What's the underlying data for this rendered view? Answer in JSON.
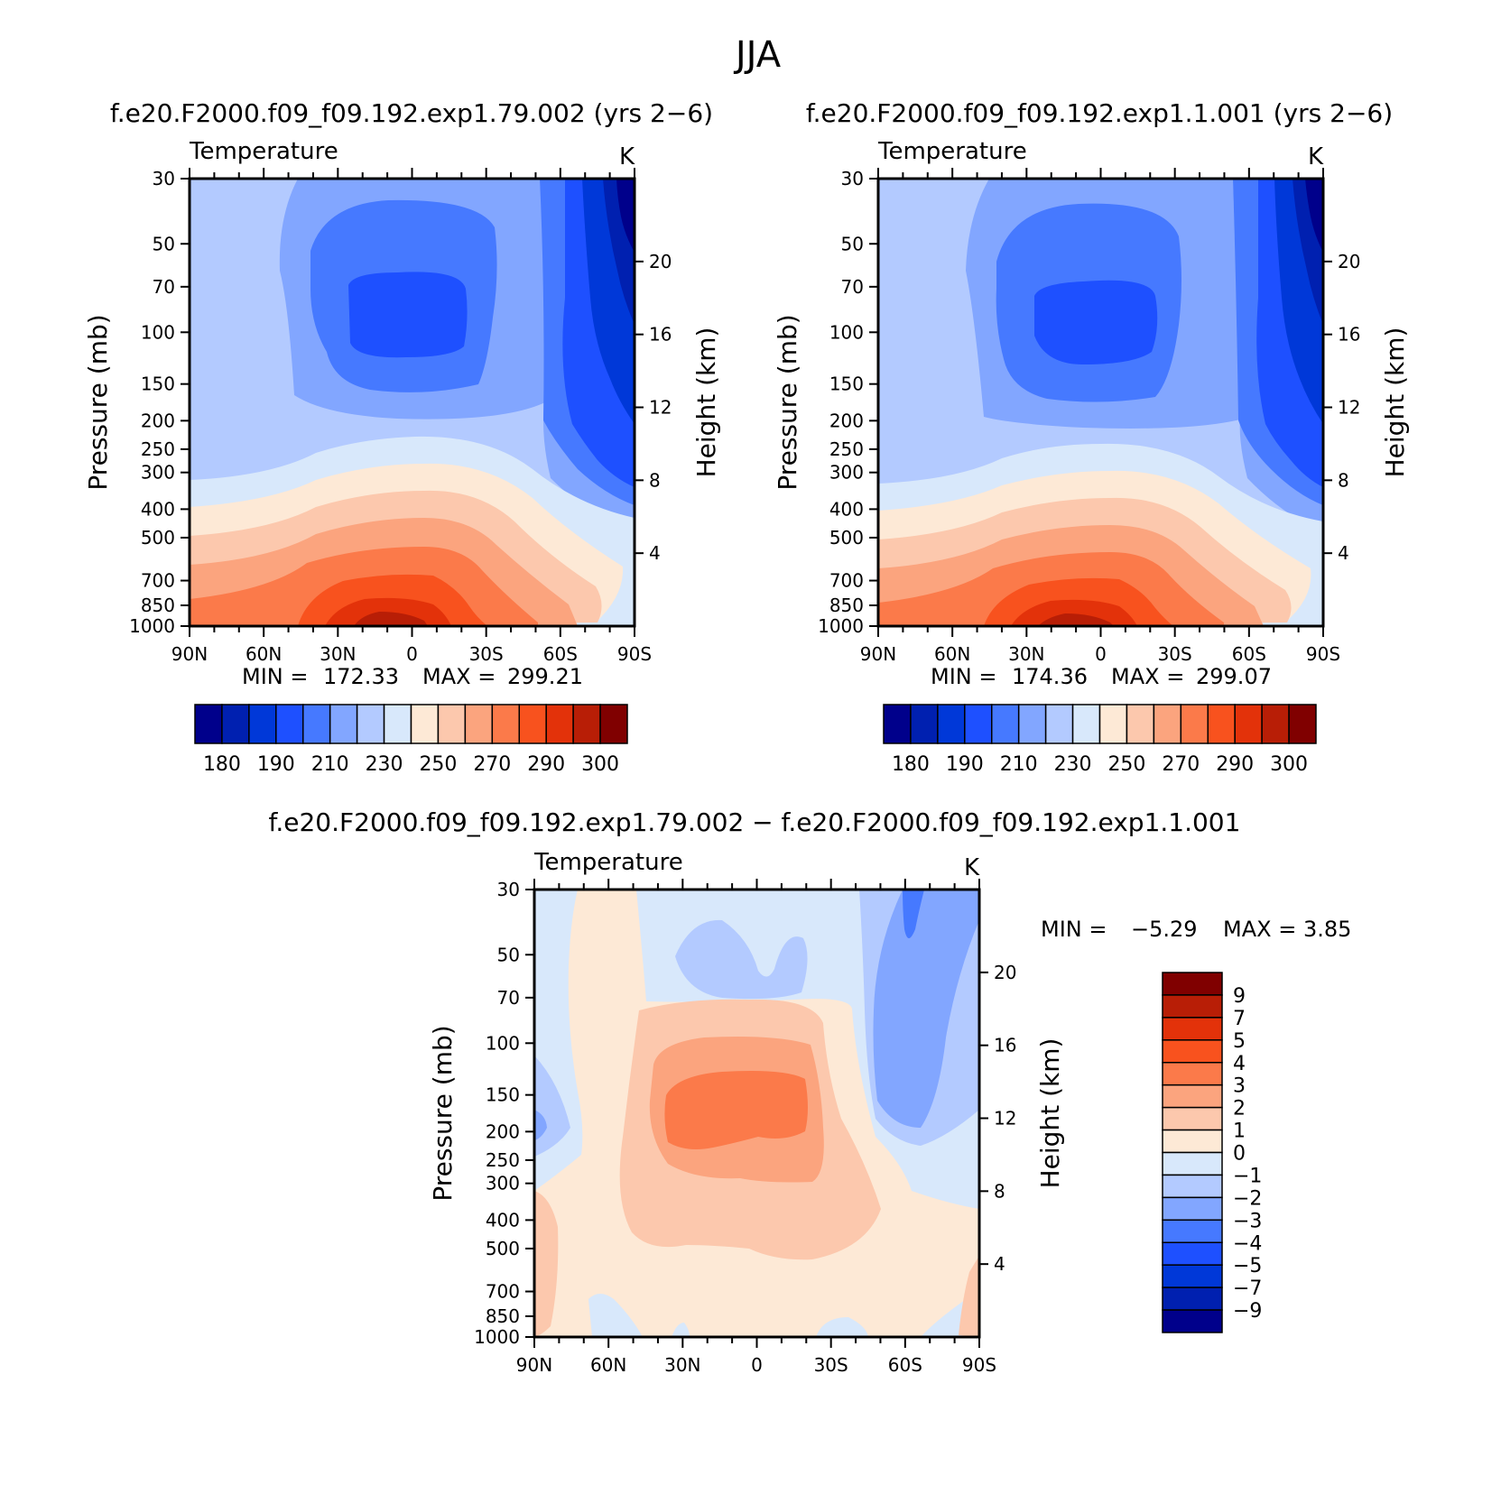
{
  "season_title": "JJA",
  "colors": {
    "abs_fill": [
      "#00008b",
      "#0020b0",
      "#0038d8",
      "#1e50ff",
      "#4679ff",
      "#82a6ff",
      "#b3caff",
      "#d8e8fb",
      "#fde9d6",
      "#fcc8ad",
      "#fba47e",
      "#fb7a4a",
      "#f8521e",
      "#e3320a",
      "#b81e06",
      "#800000"
    ],
    "diff_fill": [
      "#00008b",
      "#0020b0",
      "#0038d8",
      "#1e50ff",
      "#4679ff",
      "#82a6ff",
      "#b3caff",
      "#d8e8fb",
      "#fde9d6",
      "#fcc8ad",
      "#fba47e",
      "#fb7a4a",
      "#f8521e",
      "#e3320a",
      "#b81e06",
      "#800000"
    ]
  },
  "panels": {
    "p1": {
      "case_title": "f.e20.F2000.f09_f09.192.exp1.79.002 (yrs 2−6)",
      "variable": "Temperature",
      "units": "K",
      "y_left_label": "Pressure (mb)",
      "y_right_label": "Height (km)",
      "min_label": "MIN =",
      "min_value": "172.33",
      "max_label": "MAX =",
      "max_value": "299.21"
    },
    "p2": {
      "case_title": "f.e20.F2000.f09_f09.192.exp1.1.001 (yrs 2−6)",
      "variable": "Temperature",
      "units": "K",
      "y_left_label": "Pressure (mb)",
      "y_right_label": "Height (km)",
      "min_label": "MIN =",
      "min_value": "174.36",
      "max_label": "MAX =",
      "max_value": "299.07"
    },
    "p3": {
      "case_title": "f.e20.F2000.f09_f09.192.exp1.79.002 − f.e20.F2000.f09_f09.192.exp1.1.001",
      "variable": "Temperature",
      "units": "K",
      "y_left_label": "Pressure (mb)",
      "y_right_label": "Height (km)",
      "min_label": "MIN =",
      "min_value": "−5.29",
      "max_label": "MAX =",
      "max_value": "3.85"
    }
  },
  "chart_data": [
    {
      "type": "heatmap",
      "subtype": "filled-contour zonal-mean cross-section",
      "title": "f.e20.F2000.f09_f09.192.exp1.79.002 (yrs 2−6)",
      "variable": "Temperature",
      "units": "K",
      "xlabel": "",
      "ylabel": "Pressure (mb)",
      "y2label": "Height (km)",
      "x_ticks": [
        "90N",
        "60N",
        "30N",
        "0",
        "30S",
        "60S",
        "90S"
      ],
      "pressure_ticks": [
        30,
        50,
        70,
        100,
        150,
        200,
        250,
        300,
        400,
        500,
        700,
        850,
        1000
      ],
      "height_ticks": [
        4,
        8,
        12,
        16,
        20
      ],
      "ylim": [
        1000,
        30
      ],
      "y_scale": "log",
      "colorbar_labels": [
        "180",
        "190",
        "210",
        "230",
        "250",
        "270",
        "290",
        "300"
      ],
      "colorbar_n_colors": 16,
      "min": 172.33,
      "max": 299.21
    },
    {
      "type": "heatmap",
      "subtype": "filled-contour zonal-mean cross-section",
      "title": "f.e20.F2000.f09_f09.192.exp1.1.001 (yrs 2−6)",
      "variable": "Temperature",
      "units": "K",
      "xlabel": "",
      "ylabel": "Pressure (mb)",
      "y2label": "Height (km)",
      "x_ticks": [
        "90N",
        "60N",
        "30N",
        "0",
        "30S",
        "60S",
        "90S"
      ],
      "pressure_ticks": [
        30,
        50,
        70,
        100,
        150,
        200,
        250,
        300,
        400,
        500,
        700,
        850,
        1000
      ],
      "height_ticks": [
        4,
        8,
        12,
        16,
        20
      ],
      "ylim": [
        1000,
        30
      ],
      "y_scale": "log",
      "colorbar_labels": [
        "180",
        "190",
        "210",
        "230",
        "250",
        "270",
        "290",
        "300"
      ],
      "colorbar_n_colors": 16,
      "min": 174.36,
      "max": 299.07
    },
    {
      "type": "heatmap",
      "subtype": "filled-contour difference cross-section",
      "title": "f.e20.F2000.f09_f09.192.exp1.79.002 − f.e20.F2000.f09_f09.192.exp1.1.001",
      "variable": "Temperature",
      "units": "K",
      "xlabel": "",
      "ylabel": "Pressure (mb)",
      "y2label": "Height (km)",
      "x_ticks": [
        "90N",
        "60N",
        "30N",
        "0",
        "30S",
        "60S",
        "90S"
      ],
      "pressure_ticks": [
        30,
        50,
        70,
        100,
        150,
        200,
        250,
        300,
        400,
        500,
        700,
        850,
        1000
      ],
      "height_ticks": [
        4,
        8,
        12,
        16,
        20
      ],
      "ylim": [
        1000,
        30
      ],
      "y_scale": "log",
      "colorbar_labels": [
        "9",
        "7",
        "5",
        "4",
        "3",
        "2",
        "1",
        "0",
        "−1",
        "−2",
        "−3",
        "−4",
        "−5",
        "−7",
        "−9"
      ],
      "colorbar_n_colors": 16,
      "min": -5.29,
      "max": 3.85
    }
  ]
}
